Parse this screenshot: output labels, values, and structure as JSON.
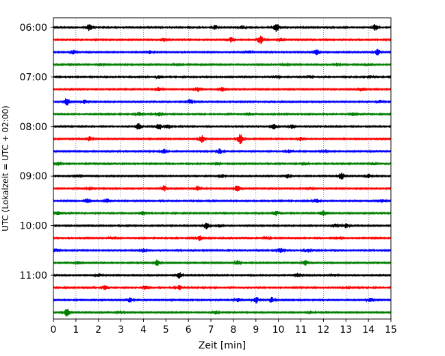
{
  "chart_data": {
    "type": "line",
    "title": "",
    "xlabel": "Zeit  [min]",
    "ylabel": "UTC (Lokalzeit = UTC + 02:00)",
    "xlim": [
      0,
      15
    ],
    "x_ticks": [
      "0",
      "1",
      "2",
      "3",
      "4",
      "5",
      "6",
      "7",
      "8",
      "9",
      "10",
      "11",
      "12",
      "13",
      "14",
      "15"
    ],
    "y_tick_labels": [
      "06:00",
      "07:00",
      "08:00",
      "09:00",
      "10:00",
      "11:00"
    ],
    "y_tick_trace_index": [
      0,
      4,
      8,
      12,
      16,
      20
    ],
    "trace_interval_min": 15,
    "grid": "vertical dotted",
    "trace_colors": [
      "#000000",
      "#ff0000",
      "#0000ff",
      "#008000"
    ],
    "trace_start_times": [
      "06:00",
      "06:15",
      "06:30",
      "06:45",
      "07:00",
      "07:15",
      "07:30",
      "07:45",
      "08:00",
      "08:15",
      "08:30",
      "08:45",
      "09:00",
      "09:15",
      "09:30",
      "09:45",
      "10:00",
      "10:15",
      "10:30",
      "10:45",
      "11:00",
      "11:15",
      "11:30",
      "11:45"
    ],
    "bursts": [
      [
        [
          1.6,
          0.6
        ],
        [
          7.2,
          0.4
        ],
        [
          8.4,
          0.35
        ],
        [
          9.9,
          0.8
        ],
        [
          14.3,
          0.6
        ]
      ],
      [
        [
          4.9,
          0.3
        ],
        [
          7.9,
          0.45
        ],
        [
          9.2,
          0.75
        ],
        [
          10.1,
          0.3
        ]
      ],
      [
        [
          0.9,
          0.4
        ],
        [
          4.3,
          0.3
        ],
        [
          8.7,
          0.3
        ],
        [
          11.7,
          0.5
        ],
        [
          14.4,
          0.55
        ]
      ],
      [
        [
          2.1,
          0.2
        ],
        [
          5.5,
          0.2
        ],
        [
          10.3,
          0.2
        ],
        [
          12.6,
          0.25
        ],
        [
          14.0,
          0.2
        ]
      ],
      [
        [
          4.7,
          0.2
        ],
        [
          9.9,
          0.2
        ],
        [
          11.4,
          0.2
        ],
        [
          14.1,
          0.2
        ]
      ],
      [
        [
          4.7,
          0.4
        ],
        [
          6.4,
          0.45
        ],
        [
          7.5,
          0.4
        ],
        [
          13.7,
          0.3
        ]
      ],
      [
        [
          0.6,
          0.7
        ],
        [
          1.4,
          0.3
        ],
        [
          6.1,
          0.45
        ],
        [
          14.5,
          0.25
        ]
      ],
      [
        [
          3.8,
          0.3
        ],
        [
          4.7,
          0.3
        ],
        [
          8.7,
          0.25
        ],
        [
          13.3,
          0.3
        ]
      ],
      [
        [
          3.8,
          0.6
        ],
        [
          4.7,
          0.6
        ],
        [
          5.1,
          0.35
        ],
        [
          9.8,
          0.45
        ],
        [
          10.6,
          0.3
        ]
      ],
      [
        [
          1.6,
          0.4
        ],
        [
          6.6,
          0.7
        ],
        [
          8.3,
          0.85
        ],
        [
          11.0,
          0.3
        ]
      ],
      [
        [
          4.9,
          0.4
        ],
        [
          7.4,
          0.5
        ],
        [
          10.5,
          0.3
        ],
        [
          12.0,
          0.2
        ]
      ],
      [
        [
          0.2,
          0.3
        ],
        [
          7.3,
          0.2
        ],
        [
          11.2,
          0.2
        ],
        [
          14.2,
          0.2
        ]
      ],
      [
        [
          1.1,
          0.2
        ],
        [
          7.5,
          0.3
        ],
        [
          10.4,
          0.35
        ],
        [
          12.8,
          0.6
        ],
        [
          14.0,
          0.35
        ]
      ],
      [
        [
          1.6,
          0.25
        ],
        [
          4.9,
          0.5
        ],
        [
          6.4,
          0.45
        ],
        [
          8.2,
          0.65
        ],
        [
          11.4,
          0.2
        ]
      ],
      [
        [
          1.5,
          0.4
        ],
        [
          2.4,
          0.35
        ],
        [
          11.7,
          0.3
        ],
        [
          14.6,
          0.25
        ]
      ],
      [
        [
          0.2,
          0.35
        ],
        [
          4.0,
          0.3
        ],
        [
          9.9,
          0.4
        ],
        [
          12.0,
          0.45
        ]
      ],
      [
        [
          6.8,
          0.6
        ],
        [
          7.4,
          0.3
        ],
        [
          12.5,
          0.3
        ],
        [
          13.0,
          0.4
        ]
      ],
      [
        [
          2.6,
          0.2
        ],
        [
          6.5,
          0.45
        ],
        [
          9.5,
          0.25
        ],
        [
          12.7,
          0.2
        ]
      ],
      [
        [
          0.1,
          0.3
        ],
        [
          4.0,
          0.3
        ],
        [
          10.1,
          0.45
        ],
        [
          11.3,
          0.3
        ]
      ],
      [
        [
          1.1,
          0.3
        ],
        [
          4.6,
          0.5
        ],
        [
          8.2,
          0.45
        ],
        [
          11.2,
          0.45
        ]
      ],
      [
        [
          2.0,
          0.3
        ],
        [
          5.6,
          0.55
        ],
        [
          10.9,
          0.35
        ],
        [
          12.5,
          0.2
        ]
      ],
      [
        [
          2.3,
          0.4
        ],
        [
          4.1,
          0.35
        ],
        [
          5.6,
          0.45
        ],
        [
          13.0,
          0.2
        ]
      ],
      [
        [
          3.4,
          0.4
        ],
        [
          8.2,
          0.3
        ],
        [
          9.0,
          0.6
        ],
        [
          9.7,
          0.5
        ],
        [
          14.1,
          0.45
        ]
      ],
      [
        [
          0.6,
          0.7
        ],
        [
          3.0,
          0.25
        ],
        [
          7.2,
          0.3
        ],
        [
          11.5,
          0.2
        ]
      ]
    ]
  }
}
